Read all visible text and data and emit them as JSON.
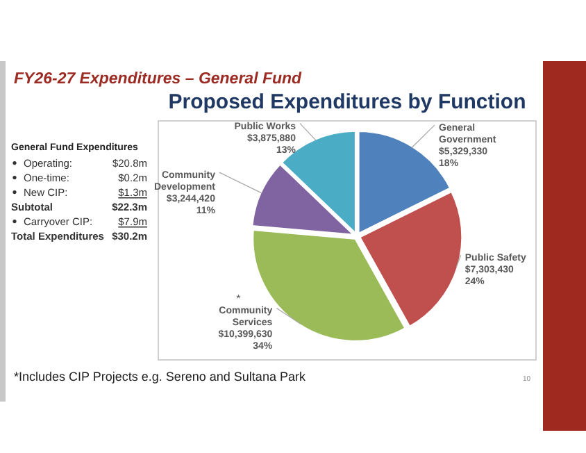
{
  "chart_data": [
    {
      "type": "pie",
      "title": "FY26-27 Expenditures – General Fund",
      "subtitle": "Proposed Expenditures by Function",
      "categories": [
        "General Government",
        "Public Safety",
        "Community Services",
        "Community Development",
        "Public Works"
      ],
      "values": [
        5329330,
        7303430,
        10399630,
        3244420,
        3875880
      ],
      "value_labels": [
        "$5,329,330\n18%",
        "$7,303,430\n24%",
        "$10,399,630\n34%",
        "$3,244,420\n11%",
        "$3,875,880\n13%"
      ],
      "colors": [
        "#4f81bd",
        "#c0504d",
        "#9bbb59",
        "#8064a2",
        "#4bacc6"
      ],
      "annotations": [
        {
          "text": "*",
          "x": "Community Services"
        },
        "*Includes CIP Projects e.g. Sereno and Sultana Park",
        "10"
      ]
    },
    {
      "type": "other",
      "title": "General Fund Expenditures",
      "annotations": [
        "Operating:",
        "$20.8m",
        "One-time:",
        "$0.2m",
        "New CIP:",
        "$1.3m",
        "Subtotal",
        "$22.3m",
        "Carryover CIP:",
        "$7.9m",
        "Total Expenditures",
        "$30.2m"
      ]
    }
  ]
}
